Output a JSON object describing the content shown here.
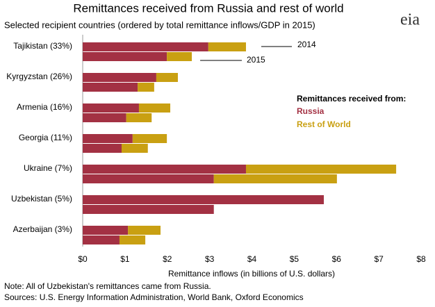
{
  "chart_data": {
    "type": "bar",
    "orientation": "horizontal",
    "stacked": true,
    "title": "Remittances received from Russia and rest of world",
    "subtitle": "Selected recipient countries (ordered by total remittance inflows/GDP in 2015)",
    "logo": "eia",
    "categories": [
      "Tajikistan (33%)",
      "Kyrgyzstan (26%)",
      "Armenia (16%)",
      "Georgia (11%)",
      "Ukraine (7%)",
      "Uzbekistan (5%)",
      "Azerbaijan (3%)"
    ],
    "years": [
      "2014",
      "2015"
    ],
    "series": [
      {
        "name": "Russia",
        "color": "#a33143",
        "values": [
          [
            2.97,
            1.99
          ],
          [
            1.74,
            1.3
          ],
          [
            1.33,
            1.03
          ],
          [
            1.18,
            0.92
          ],
          [
            3.86,
            3.1
          ],
          [
            5.7,
            3.1
          ],
          [
            1.07,
            0.87
          ]
        ]
      },
      {
        "name": "Rest of World",
        "color": "#c9a012",
        "values": [
          [
            0.89,
            0.59
          ],
          [
            0.51,
            0.39
          ],
          [
            0.74,
            0.6
          ],
          [
            0.81,
            0.62
          ],
          [
            3.55,
            2.91
          ],
          [
            0,
            0
          ],
          [
            0.77,
            0.61
          ]
        ]
      }
    ],
    "legend_title": "Remittances  received from:",
    "xlabel": "Remittance inflows (in billions of U.S. dollars)",
    "xlim": [
      0,
      8
    ],
    "xticks": [
      {
        "value": 0,
        "label": "$0"
      },
      {
        "value": 1,
        "label": "$1"
      },
      {
        "value": 2,
        "label": "$2"
      },
      {
        "value": 3,
        "label": "$3"
      },
      {
        "value": 4,
        "label": "$4"
      },
      {
        "value": 5,
        "label": "$5"
      },
      {
        "value": 6,
        "label": "$6"
      },
      {
        "value": 7,
        "label": "$7"
      },
      {
        "value": 8,
        "label": "$8"
      }
    ],
    "note": "Note: All of Uzbekistan's remittances came from Russia.",
    "sources": "Sources: U.S. Energy Information Administration, World Bank, Oxford Economics"
  }
}
